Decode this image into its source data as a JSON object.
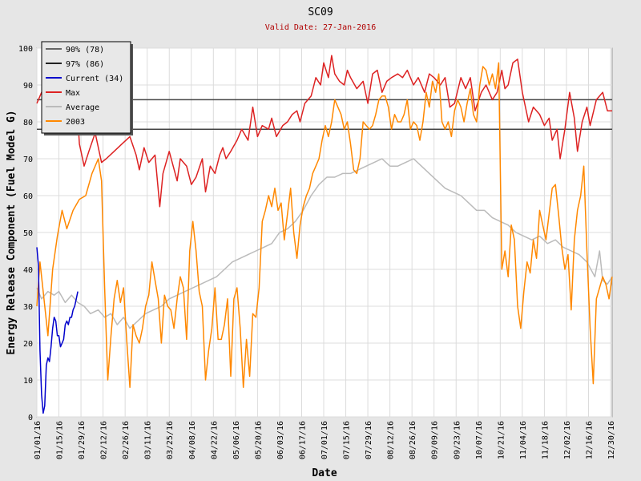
{
  "chart_data": {
    "type": "line",
    "title": "SC09",
    "subtitle": "Valid Date: 27-Jan-2016",
    "xlabel": "Date",
    "ylabel": "Energy Release Component (Fuel Model G)",
    "ylim": [
      0,
      100
    ],
    "yticks": [
      0,
      10,
      20,
      30,
      40,
      50,
      60,
      70,
      80,
      90,
      100
    ],
    "x_day_range": [
      1,
      366
    ],
    "xtick_days": [
      1,
      15,
      29,
      43,
      57,
      71,
      85,
      99,
      113,
      127,
      141,
      155,
      169,
      183,
      197,
      211,
      225,
      239,
      253,
      267,
      281,
      295,
      309,
      323,
      337,
      351,
      365
    ],
    "xtick_labels": [
      "01/01/16",
      "01/15/16",
      "01/29/16",
      "02/12/16",
      "02/26/16",
      "03/11/16",
      "03/25/16",
      "04/08/16",
      "04/22/16",
      "05/06/16",
      "05/20/16",
      "06/03/16",
      "06/17/16",
      "07/01/16",
      "07/15/16",
      "07/29/16",
      "08/12/16",
      "08/26/16",
      "09/09/16",
      "09/23/16",
      "10/07/16",
      "10/21/16",
      "11/04/16",
      "11/18/16",
      "12/02/16",
      "12/16/16",
      "12/30/16"
    ],
    "grid": true,
    "legend_position": "top-left",
    "reference_lines": [
      {
        "name": "90% (78)",
        "value": 78,
        "color": "#444444"
      },
      {
        "name": "97% (86)",
        "value": 86,
        "color": "#444444"
      }
    ],
    "legend": [
      {
        "label": "90% (78)",
        "color": "#666666"
      },
      {
        "label": "97% (86)",
        "color": "#222222"
      },
      {
        "label": "Current (34)",
        "color": "#0000cc"
      },
      {
        "label": "Max",
        "color": "#dd2222"
      },
      {
        "label": "Average",
        "color": "#bbbbbb"
      },
      {
        "label": "2003",
        "color": "#ff8800"
      }
    ],
    "series": [
      {
        "name": "Max",
        "color": "#dd2222",
        "x": [
          1,
          4,
          8,
          12,
          15,
          20,
          24,
          27,
          28,
          31,
          34,
          38,
          42,
          45,
          50,
          55,
          60,
          64,
          66,
          69,
          72,
          76,
          79,
          81,
          85,
          90,
          92,
          96,
          99,
          102,
          106,
          108,
          111,
          114,
          117,
          119,
          121,
          124,
          128,
          131,
          135,
          138,
          141,
          144,
          148,
          150,
          153,
          157,
          160,
          163,
          166,
          168,
          171,
          175,
          178,
          181,
          183,
          186,
          188,
          190,
          193,
          196,
          198,
          200,
          204,
          208,
          211,
          214,
          217,
          220,
          223,
          226,
          230,
          233,
          236,
          240,
          243,
          247,
          250,
          253,
          257,
          260,
          263,
          266,
          270,
          273,
          276,
          279,
          283,
          286,
          290,
          293,
          296,
          298,
          300,
          303,
          306,
          309,
          311,
          313,
          316,
          320,
          323,
          326,
          328,
          331,
          333,
          336,
          339,
          342,
          344,
          347,
          350,
          352,
          356,
          360,
          363,
          366
        ],
        "y": [
          85,
          88,
          92,
          92,
          90,
          88,
          84,
          81,
          74,
          68,
          72,
          77,
          69,
          70,
          72,
          74,
          76,
          71,
          67,
          73,
          69,
          71,
          57,
          66,
          72,
          64,
          70,
          68,
          63,
          65,
          70,
          61,
          68,
          66,
          71,
          73,
          70,
          72,
          75,
          78,
          75,
          84,
          76,
          79,
          78,
          81,
          76,
          79,
          80,
          82,
          83,
          80,
          85,
          87,
          92,
          90,
          96,
          92,
          98,
          93,
          91,
          90,
          94,
          92,
          89,
          91,
          85,
          93,
          94,
          88,
          91,
          92,
          93,
          92,
          94,
          90,
          92,
          88,
          93,
          92,
          90,
          92,
          84,
          85,
          92,
          89,
          92,
          83,
          88,
          90,
          86,
          88,
          94,
          89,
          90,
          96,
          97,
          88,
          84,
          80,
          84,
          82,
          79,
          81,
          75,
          78,
          70,
          78,
          88,
          81,
          72,
          80,
          84,
          79,
          86,
          88,
          83,
          83
        ]
      },
      {
        "name": "Average",
        "color": "#bbbbbb",
        "x": [
          1,
          4,
          8,
          12,
          15,
          19,
          23,
          27,
          31,
          35,
          40,
          44,
          48,
          52,
          56,
          60,
          65,
          70,
          75,
          80,
          85,
          90,
          95,
          100,
          105,
          110,
          115,
          120,
          125,
          130,
          135,
          140,
          145,
          150,
          155,
          160,
          165,
          170,
          175,
          180,
          185,
          190,
          195,
          200,
          205,
          210,
          215,
          220,
          225,
          230,
          235,
          240,
          245,
          250,
          255,
          260,
          265,
          270,
          275,
          280,
          285,
          290,
          295,
          300,
          305,
          310,
          315,
          320,
          325,
          330,
          335,
          340,
          345,
          350,
          355,
          358,
          360,
          363,
          366
        ],
        "y": [
          35,
          32,
          34,
          33,
          34,
          31,
          33,
          31,
          30,
          28,
          29,
          27,
          28,
          25,
          27,
          24,
          26,
          28,
          29,
          30,
          32,
          33,
          34,
          35,
          36,
          37,
          38,
          40,
          42,
          43,
          44,
          45,
          46,
          47,
          50,
          51,
          53,
          56,
          60,
          63,
          65,
          65,
          66,
          66,
          67,
          68,
          69,
          70,
          68,
          68,
          69,
          70,
          68,
          66,
          64,
          62,
          61,
          60,
          58,
          56,
          56,
          54,
          53,
          52,
          50,
          49,
          48,
          49,
          47,
          48,
          46,
          45,
          44,
          42,
          38,
          45,
          37,
          36,
          38
        ]
      },
      {
        "name": "2003",
        "color": "#ff8800",
        "x": [
          1,
          3,
          5,
          8,
          11,
          14,
          17,
          20,
          24,
          28,
          32,
          36,
          40,
          42,
          44,
          46,
          48,
          50,
          52,
          54,
          56,
          58,
          60,
          62,
          64,
          66,
          68,
          70,
          72,
          74,
          76,
          78,
          80,
          82,
          84,
          86,
          88,
          90,
          92,
          94,
          96,
          98,
          100,
          102,
          104,
          106,
          108,
          110,
          112,
          114,
          116,
          118,
          120,
          122,
          124,
          126,
          128,
          130,
          132,
          134,
          136,
          138,
          140,
          142,
          144,
          146,
          148,
          150,
          152,
          154,
          156,
          158,
          160,
          162,
          164,
          166,
          168,
          170,
          172,
          174,
          176,
          178,
          180,
          182,
          184,
          186,
          188,
          190,
          192,
          194,
          196,
          198,
          200,
          202,
          204,
          206,
          208,
          210,
          212,
          214,
          216,
          218,
          220,
          222,
          224,
          226,
          228,
          230,
          232,
          234,
          236,
          238,
          240,
          242,
          244,
          246,
          248,
          250,
          252,
          254,
          256,
          258,
          260,
          262,
          264,
          266,
          268,
          270,
          272,
          274,
          276,
          278,
          280,
          282,
          284,
          286,
          288,
          290,
          292,
          294,
          296,
          298,
          300,
          302,
          304,
          306,
          308,
          310,
          312,
          314,
          316,
          318,
          320,
          322,
          324,
          326,
          328,
          330,
          332,
          334,
          336,
          338,
          340,
          342,
          344,
          346,
          348,
          350,
          352,
          354,
          356,
          358,
          360,
          362,
          364,
          366
        ],
        "y": [
          30,
          42,
          34,
          22,
          40,
          49,
          56,
          51,
          56,
          59,
          60,
          66,
          70,
          64,
          35,
          10,
          22,
          32,
          37,
          31,
          35,
          21,
          8,
          25,
          22,
          20,
          24,
          30,
          33,
          42,
          37,
          32,
          20,
          33,
          30,
          29,
          24,
          32,
          38,
          35,
          21,
          45,
          53,
          45,
          34,
          30,
          10,
          18,
          24,
          35,
          21,
          21,
          25,
          32,
          11,
          32,
          35,
          24,
          8,
          21,
          11,
          28,
          27,
          35,
          53,
          56,
          60,
          57,
          62,
          56,
          58,
          48,
          55,
          62,
          50,
          43,
          52,
          57,
          60,
          62,
          66,
          68,
          70,
          75,
          79,
          76,
          80,
          86,
          84,
          82,
          78,
          80,
          74,
          67,
          66,
          70,
          80,
          79,
          78,
          79,
          82,
          86,
          87,
          87,
          84,
          78,
          82,
          80,
          80,
          82,
          86,
          78,
          80,
          79,
          75,
          80,
          88,
          84,
          91,
          88,
          93,
          80,
          78,
          80,
          76,
          83,
          86,
          84,
          80,
          85,
          89,
          82,
          80,
          90,
          95,
          94,
          90,
          93,
          89,
          96,
          40,
          45,
          38,
          52,
          48,
          30,
          24,
          34,
          42,
          39,
          48,
          43,
          56,
          52,
          48,
          55,
          62,
          63,
          55,
          46,
          40,
          44,
          29,
          48,
          56,
          60,
          68,
          45,
          24,
          9,
          32,
          35,
          38,
          36,
          32,
          38
        ]
      },
      {
        "name": "Current (34)",
        "color": "#0000cc",
        "x": [
          1,
          2,
          3,
          4,
          5,
          6,
          7,
          8,
          9,
          10,
          11,
          12,
          13,
          14,
          15,
          16,
          17,
          18,
          19,
          20,
          21,
          22,
          23,
          24,
          25,
          26,
          27
        ],
        "y": [
          46,
          41,
          18,
          6,
          1,
          3,
          14,
          16,
          15,
          19,
          24,
          27,
          26,
          22,
          22,
          19,
          20,
          21,
          25,
          26,
          25,
          27,
          27,
          29,
          30,
          32,
          34
        ]
      }
    ]
  }
}
